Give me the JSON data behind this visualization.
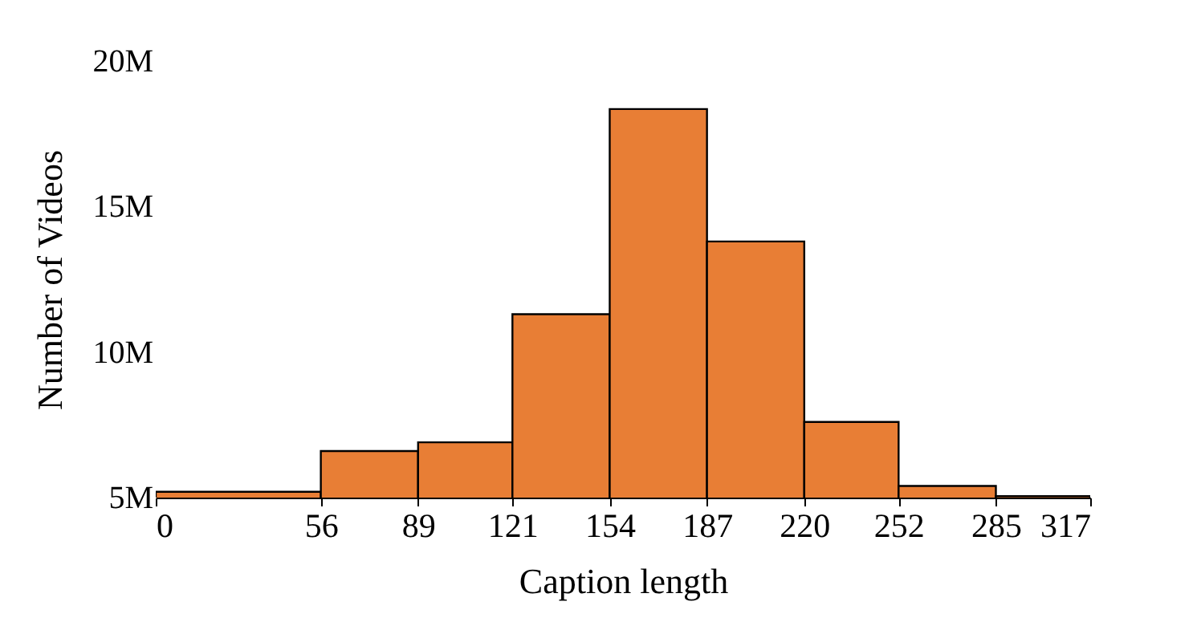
{
  "chart_data": {
    "type": "histogram",
    "xlabel": "Caption length",
    "ylabel": "Number of Videos",
    "bins": [
      0,
      56,
      89,
      121,
      154,
      187,
      220,
      252,
      285,
      317
    ],
    "values": [
      5200000,
      6600000,
      6900000,
      11300000,
      18350000,
      13800000,
      7600000,
      5400000,
      5050000
    ],
    "color": "#e87e35",
    "xlim": [
      0,
      317
    ],
    "xticks": [
      0,
      56,
      89,
      121,
      154,
      187,
      220,
      252,
      285,
      317
    ],
    "ylim": [
      5000000,
      20000000
    ],
    "yticks": [
      {
        "value": 5000000,
        "label": "5M"
      },
      {
        "value": 10000000,
        "label": "10M"
      },
      {
        "value": 15000000,
        "label": "15M"
      },
      {
        "value": 20000000,
        "label": "20M"
      }
    ],
    "grid": false
  }
}
